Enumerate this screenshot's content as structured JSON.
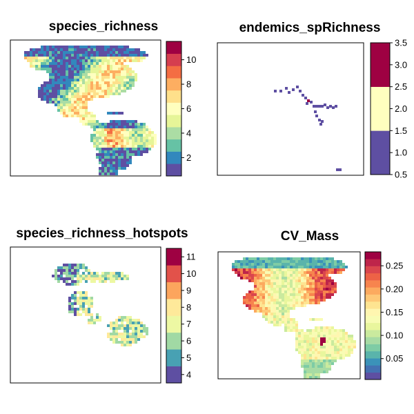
{
  "chart_data": [
    {
      "type": "heatmap",
      "title": "species_richness",
      "region": "americas",
      "colorbar": {
        "min": 0.5,
        "max": 11.5,
        "levels": 11,
        "ticks": [
          2,
          4,
          6,
          8,
          10
        ],
        "tick_labels": [
          "2",
          "4",
          "6",
          "8",
          "10"
        ]
      },
      "xlabel": "",
      "ylabel": ""
    },
    {
      "type": "heatmap",
      "title": "endemics_spRichness",
      "region": "sparse",
      "colorbar": {
        "min": 0.5,
        "max": 3.5,
        "levels": 3,
        "ticks": [
          0.5,
          1.0,
          1.5,
          2.0,
          2.5,
          3.0,
          3.5
        ],
        "tick_labels": [
          "0.5",
          "1.0",
          "1.5",
          "2.0",
          "2.5",
          "3.0",
          "3.5"
        ]
      },
      "xlabel": "",
      "ylabel": ""
    },
    {
      "type": "heatmap",
      "title": "species_richness_hotspots",
      "region": "hotspots",
      "colorbar": {
        "min": 3.5,
        "max": 11.5,
        "levels": 8,
        "ticks": [
          4,
          5,
          6,
          7,
          8,
          9,
          10,
          11
        ],
        "tick_labels": [
          "4",
          "5",
          "6",
          "7",
          "8",
          "9",
          "10",
          "11"
        ]
      },
      "xlabel": "",
      "ylabel": ""
    },
    {
      "type": "heatmap",
      "title": "CV_Mass",
      "region": "cv",
      "colorbar": {
        "min": 0.005,
        "max": 0.28,
        "levels": 18,
        "ticks": [
          0.05,
          0.1,
          0.15,
          0.2,
          0.25
        ],
        "tick_labels": [
          "0.05",
          "0.10",
          "0.15",
          "0.20",
          "0.25"
        ]
      },
      "xlabel": "",
      "ylabel": ""
    }
  ],
  "palette": [
    "#5e4fa2",
    "#3288bd",
    "#66c2a5",
    "#abdda4",
    "#e6f598",
    "#ffffbf",
    "#fee08b",
    "#fdae61",
    "#f46d43",
    "#d53e4f",
    "#9e0142"
  ]
}
